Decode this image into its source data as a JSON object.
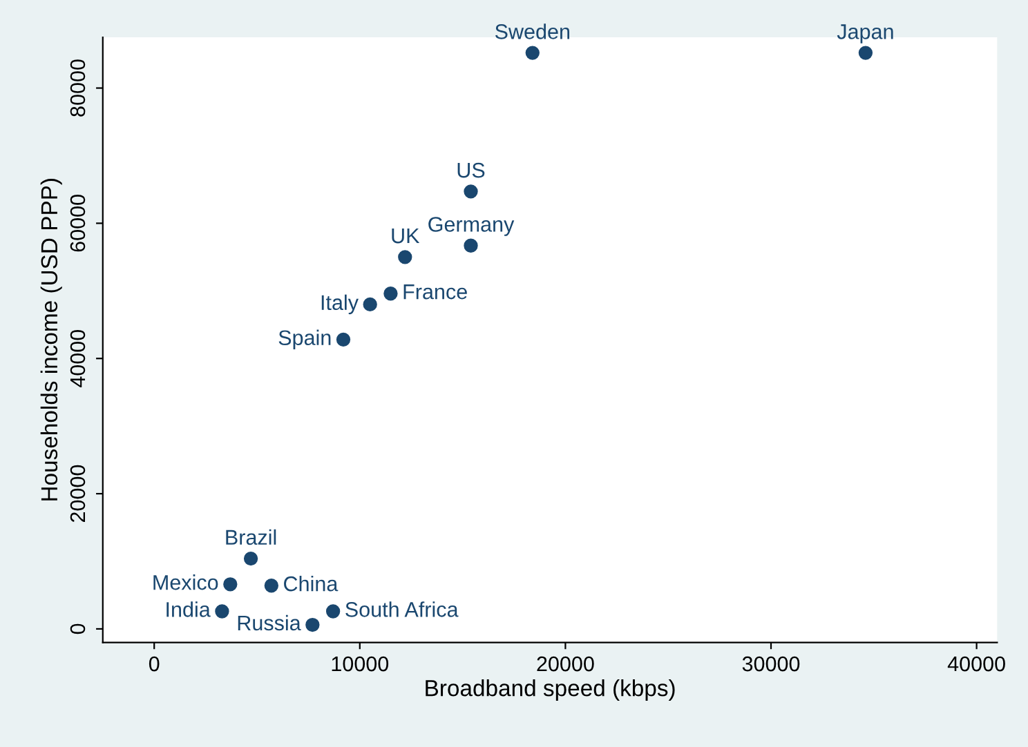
{
  "chart_data": {
    "type": "scatter",
    "xlabel": "Broadband speed (kbps)",
    "ylabel": "Households income (USD PPP)",
    "x": [
      18400,
      34600,
      15400,
      15400,
      12200,
      11500,
      10500,
      9200,
      4700,
      3700,
      5700,
      3300,
      8700,
      7700
    ],
    "series": [
      {
        "color": "#1a476f",
        "values": [
          85200,
          85200,
          64700,
          56700,
          55000,
          49600,
          48000,
          42800,
          10400,
          6600,
          6400,
          2600,
          2600,
          600
        ]
      }
    ],
    "annotations": [
      {
        "text": "Sweden",
        "x": 18400,
        "y": 85200
      },
      {
        "text": "Japan",
        "x": 34600,
        "y": 85200
      },
      {
        "text": "US",
        "x": 15400,
        "y": 64700
      },
      {
        "text": "Germany",
        "x": 15400,
        "y": 56700
      },
      {
        "text": "UK",
        "x": 12200,
        "y": 55000
      },
      {
        "text": "France",
        "x": 11500,
        "y": 49600
      },
      {
        "text": "Italy",
        "x": 10500,
        "y": 48000
      },
      {
        "text": "Spain",
        "x": 9200,
        "y": 42800
      },
      {
        "text": "Brazil",
        "x": 4700,
        "y": 10400
      },
      {
        "text": "Mexico",
        "x": 3700,
        "y": 6600
      },
      {
        "text": "China",
        "x": 5700,
        "y": 6400
      },
      {
        "text": "India",
        "x": 3300,
        "y": 2600
      },
      {
        "text": "South Africa",
        "x": 8700,
        "y": 2600
      },
      {
        "text": "Russia",
        "x": 7700,
        "y": 600
      }
    ],
    "xlim": [
      -2500,
      41000
    ],
    "ylim": [
      -2000,
      87500
    ],
    "xticks": [
      0,
      10000,
      20000,
      30000,
      40000
    ],
    "yticks": [
      0,
      20000,
      40000,
      60000,
      80000
    ],
    "marker": "circle",
    "grid": false,
    "legend": false
  }
}
